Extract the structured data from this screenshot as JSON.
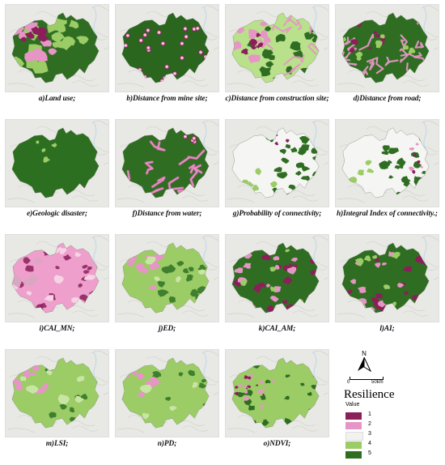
{
  "panels": [
    {
      "caption": "a)Land use;",
      "scheme": "landuse"
    },
    {
      "caption": "b)Distance from mine site;",
      "scheme": "mine"
    },
    {
      "caption": "c)Distance from construction site;",
      "scheme": "construction"
    },
    {
      "caption": "d)Distance from road;",
      "scheme": "road"
    },
    {
      "caption": "e)Geologic disaster;",
      "scheme": "geologic"
    },
    {
      "caption": "f)Distance from water;",
      "scheme": "water"
    },
    {
      "caption": "g)Probability of connectivity;",
      "scheme": "pc"
    },
    {
      "caption": "h)Integral Index of connectivity.;",
      "scheme": "iic"
    },
    {
      "caption": "i)CAI_MN;",
      "scheme": "caimn"
    },
    {
      "caption": "j)ED;",
      "scheme": "ed"
    },
    {
      "caption": "k)CAI_AM;",
      "scheme": "caiam"
    },
    {
      "caption": "l)AI;",
      "scheme": "ai"
    },
    {
      "caption": "m)LSI;",
      "scheme": "lsi"
    },
    {
      "caption": "n)PD;",
      "scheme": "pd"
    },
    {
      "caption": "o)NDVI;",
      "scheme": "ndvi"
    }
  ],
  "legend": {
    "north_label": "N",
    "scale_start": "0",
    "scale_end": "50km",
    "title": "Resilience",
    "subtitle": "Value",
    "items": [
      {
        "label": "1",
        "color": "#8b1f5a"
      },
      {
        "label": "2",
        "color": "#e795c6"
      },
      {
        "label": "3",
        "color": "#f2f2ee"
      },
      {
        "label": "4",
        "color": "#9ccc66"
      },
      {
        "label": "5",
        "color": "#2f6e22"
      }
    ]
  }
}
